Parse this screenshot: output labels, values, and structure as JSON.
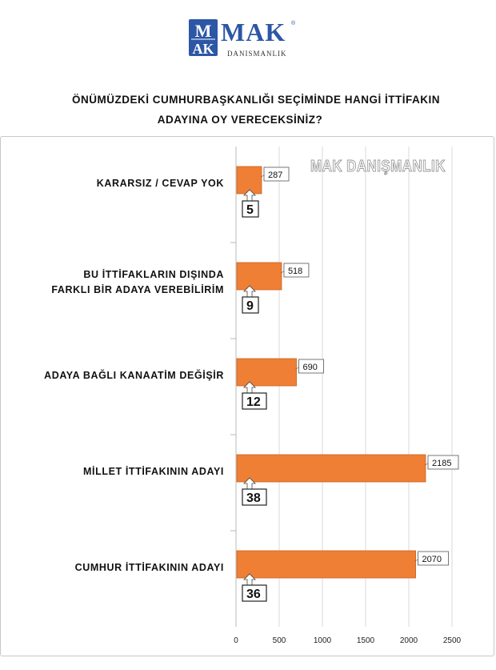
{
  "logo": {
    "mark_letters_top": "M",
    "mark_letters_bottom": "AK",
    "name": "MAK",
    "subtitle": "DANISMANLIK",
    "reg_mark": "®"
  },
  "title_line1": "ÖNÜMÜZDEKİ CUMHURBAŞKANLIĞI SEÇİMİNDE HANGİ İTTİFAKIN",
  "title_line2": "ADAYINA OY VERECEKSİNİZ?",
  "watermark": "MAK DANIŞMANLIK",
  "colors": {
    "bar": "#ef7f35",
    "bar_border": "#c9621e",
    "grid": "#d9d9d9",
    "logo": "#2c56a6"
  },
  "chart_data": {
    "type": "bar",
    "orientation": "horizontal",
    "categories": [
      [
        "KARARSIZ / CEVAP YOK"
      ],
      [
        "BU İTTİFAKLARIN DIŞINDA",
        "FARKLI BİR ADAYA VEREBİLİRİM"
      ],
      [
        "ADAYA BAĞLI KANAATİM DEĞİŞİR"
      ],
      [
        "MİLLET İTTİFAKININ ADAYI"
      ],
      [
        "CUMHUR İTTİFAKININ ADAYI"
      ]
    ],
    "values": [
      287,
      518,
      690,
      2185,
      2070
    ],
    "percent_labels": [
      "5",
      "9",
      "12",
      "38",
      "36"
    ],
    "xlim": [
      0,
      2500
    ],
    "xticks": [
      "0",
      "500",
      "1000",
      "1500",
      "2000",
      "2500"
    ],
    "grid": true,
    "xlabel": "",
    "ylabel": ""
  }
}
